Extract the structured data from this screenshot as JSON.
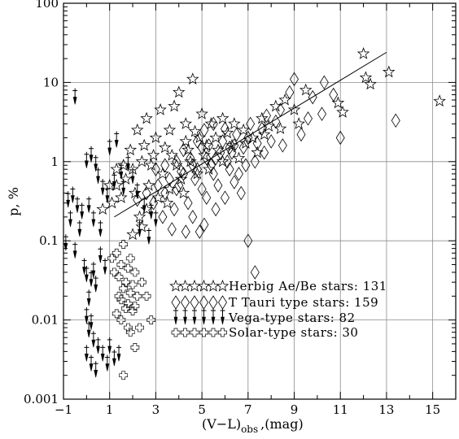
{
  "chart_data": {
    "type": "scatter",
    "title": "",
    "xlabel_main": "(V−L)",
    "xlabel_sub": "obs",
    "xlabel_unit": ",(mag)",
    "ylabel": "p, %",
    "xlim": [
      -1,
      16
    ],
    "ylim": [
      0.001,
      100
    ],
    "y_scale": "log",
    "grid": true,
    "legend_position": "lower-right",
    "x_ticks": [
      {
        "value": -1,
        "label": "−1"
      },
      {
        "value": 1,
        "label": "1"
      },
      {
        "value": 3,
        "label": "3"
      },
      {
        "value": 5,
        "label": "5"
      },
      {
        "value": 7,
        "label": "7"
      },
      {
        "value": 9,
        "label": "9"
      },
      {
        "value": 11,
        "label": "11"
      },
      {
        "value": 13,
        "label": "13"
      },
      {
        "value": 15,
        "label": "15"
      }
    ],
    "y_ticks": [
      {
        "value": 0.001,
        "label": "0.001"
      },
      {
        "value": 0.01,
        "label": "0.01"
      },
      {
        "value": 0.1,
        "label": "0.1"
      },
      {
        "value": 1,
        "label": "1"
      },
      {
        "value": 10,
        "label": "10"
      },
      {
        "value": 100,
        "label": "100"
      }
    ],
    "legend": [
      {
        "marker": "star",
        "label": "Herbig Ae/Be stars: 131"
      },
      {
        "marker": "diamond",
        "label": "T Tauri type stars: 159"
      },
      {
        "marker": "upperlimit",
        "label": "Vega-type stars: 82"
      },
      {
        "marker": "cross",
        "label": "Solar-type stars: 30"
      }
    ],
    "fit_line": {
      "x": [
        1.2,
        13.0
      ],
      "y": [
        0.2,
        24.0
      ]
    },
    "series": [
      {
        "marker": "star",
        "points": [
          [
            12.0,
            23.0
          ],
          [
            13.1,
            13.5
          ],
          [
            15.3,
            5.8
          ],
          [
            12.1,
            11.5
          ],
          [
            12.3,
            9.5
          ],
          [
            10.9,
            5.5
          ],
          [
            11.1,
            4.2
          ],
          [
            9.5,
            8.0
          ],
          [
            8.6,
            6.0
          ],
          [
            8.2,
            5.0
          ],
          [
            7.6,
            3.5
          ],
          [
            7.9,
            2.8
          ],
          [
            9.0,
            4.5
          ],
          [
            4.0,
            7.5
          ],
          [
            4.6,
            11.0
          ],
          [
            3.8,
            5.0
          ],
          [
            3.2,
            4.5
          ],
          [
            2.6,
            3.5
          ],
          [
            2.2,
            2.5
          ],
          [
            3.0,
            2.0
          ],
          [
            3.6,
            2.5
          ],
          [
            4.3,
            3.0
          ],
          [
            5.0,
            4.0
          ],
          [
            5.4,
            3.0
          ],
          [
            5.9,
            3.5
          ],
          [
            6.4,
            3.0
          ],
          [
            4.9,
            2.0
          ],
          [
            5.6,
            2.0
          ],
          [
            6.1,
            2.3
          ],
          [
            6.8,
            2.5
          ],
          [
            7.2,
            2.0
          ],
          [
            3.4,
            1.5
          ],
          [
            2.9,
            1.2
          ],
          [
            2.4,
            1.0
          ],
          [
            2.0,
            0.8
          ],
          [
            1.7,
            0.6
          ],
          [
            1.5,
            0.35
          ],
          [
            2.1,
            0.4
          ],
          [
            2.7,
            0.5
          ],
          [
            3.3,
            0.7
          ],
          [
            3.9,
            0.9
          ],
          [
            4.5,
            1.0
          ],
          [
            5.1,
            1.2
          ],
          [
            5.7,
            1.4
          ],
          [
            6.3,
            1.6
          ],
          [
            4.1,
            0.6
          ],
          [
            3.6,
            0.45
          ],
          [
            3.1,
            0.35
          ],
          [
            2.6,
            0.25
          ],
          [
            2.3,
            0.2
          ],
          [
            3.5,
            0.3
          ],
          [
            4.2,
            0.4
          ],
          [
            4.8,
            0.7
          ],
          [
            5.3,
            0.8
          ],
          [
            5.9,
            1.0
          ],
          [
            6.6,
            1.1
          ],
          [
            7.4,
            1.3
          ],
          [
            4.3,
            1.8
          ],
          [
            4.7,
            2.4
          ],
          [
            5.2,
            1.6
          ],
          [
            2.5,
            1.6
          ],
          [
            1.9,
            1.4
          ],
          [
            1.6,
            0.9
          ],
          [
            1.3,
            0.5
          ],
          [
            1.1,
            0.3
          ],
          [
            0.7,
            0.25
          ],
          [
            2.8,
            0.9
          ],
          [
            3.7,
            1.2
          ],
          [
            4.4,
            1.4
          ],
          [
            6.9,
            1.7
          ],
          [
            7.7,
            2.2
          ],
          [
            8.4,
            2.6
          ],
          [
            9.2,
            3.0
          ],
          [
            2.0,
            0.12
          ],
          [
            2.4,
            0.15
          ],
          [
            1.3,
            0.8
          ],
          [
            1.0,
            0.5
          ]
        ]
      },
      {
        "marker": "diamond",
        "points": [
          [
            9.0,
            11.0
          ],
          [
            10.3,
            10.0
          ],
          [
            8.8,
            7.5
          ],
          [
            9.8,
            6.5
          ],
          [
            10.7,
            7.0
          ],
          [
            11.0,
            2.0
          ],
          [
            13.4,
            3.3
          ],
          [
            8.2,
            3.2
          ],
          [
            7.6,
            2.6
          ],
          [
            7.0,
            2.0
          ],
          [
            6.4,
            1.6
          ],
          [
            5.8,
            1.3
          ],
          [
            5.2,
            1.1
          ],
          [
            4.6,
            0.9
          ],
          [
            4.1,
            0.75
          ],
          [
            3.6,
            0.6
          ],
          [
            3.1,
            0.5
          ],
          [
            2.6,
            0.4
          ],
          [
            2.2,
            0.33
          ],
          [
            5.1,
            2.5
          ],
          [
            5.5,
            3.0
          ],
          [
            6.0,
            2.6
          ],
          [
            6.5,
            2.2
          ],
          [
            7.1,
            3.0
          ],
          [
            7.8,
            3.8
          ],
          [
            8.4,
            4.5
          ],
          [
            4.8,
            1.8
          ],
          [
            5.3,
            1.6
          ],
          [
            5.9,
            1.8
          ],
          [
            6.3,
            1.3
          ],
          [
            6.8,
            1.5
          ],
          [
            7.4,
            1.7
          ],
          [
            4.2,
            1.4
          ],
          [
            4.5,
            1.1
          ],
          [
            3.9,
            1.0
          ],
          [
            3.4,
            0.9
          ],
          [
            3.0,
            0.8
          ],
          [
            4.0,
            0.5
          ],
          [
            4.7,
            0.6
          ],
          [
            5.5,
            0.7
          ],
          [
            6.2,
            0.8
          ],
          [
            6.9,
            0.9
          ],
          [
            7.3,
            1.0
          ],
          [
            5.0,
            0.45
          ],
          [
            5.7,
            0.5
          ],
          [
            6.4,
            0.55
          ],
          [
            5.2,
            0.35
          ],
          [
            4.4,
            0.3
          ],
          [
            3.8,
            0.25
          ],
          [
            3.3,
            0.2
          ],
          [
            4.6,
            0.2
          ],
          [
            5.6,
            0.25
          ],
          [
            6.0,
            0.35
          ],
          [
            6.7,
            0.4
          ],
          [
            5.1,
            0.16
          ],
          [
            4.3,
            0.13
          ],
          [
            4.9,
            0.13
          ],
          [
            3.7,
            0.14
          ],
          [
            7.0,
            0.1
          ],
          [
            7.3,
            0.04
          ],
          [
            9.3,
            2.2
          ],
          [
            9.6,
            3.5
          ],
          [
            10.2,
            4.0
          ],
          [
            8.0,
            1.8
          ],
          [
            7.7,
            1.3
          ],
          [
            8.5,
            1.6
          ],
          [
            6.6,
            0.7
          ],
          [
            6.1,
            1.0
          ],
          [
            5.4,
            0.9
          ],
          [
            4.8,
            0.8
          ],
          [
            4.2,
            0.7
          ],
          [
            3.9,
            0.45
          ],
          [
            2.9,
            0.3
          ],
          [
            3.4,
            0.4
          ],
          [
            5.0,
            1.5
          ],
          [
            5.6,
            1.1
          ],
          [
            6.2,
            1.5
          ]
        ]
      },
      {
        "marker": "upperlimit",
        "points": [
          [
            -0.5,
            7.0
          ],
          [
            -0.6,
            0.4
          ],
          [
            -0.8,
            0.35
          ],
          [
            -0.4,
            0.3
          ],
          [
            -0.2,
            0.25
          ],
          [
            -0.7,
            0.2
          ],
          [
            -0.3,
            0.15
          ],
          [
            -0.9,
            0.1
          ],
          [
            -0.5,
            0.08
          ],
          [
            0.0,
            1.1
          ],
          [
            0.2,
            1.3
          ],
          [
            0.4,
            1.0
          ],
          [
            0.5,
            0.7
          ],
          [
            0.7,
            0.5
          ],
          [
            0.9,
            0.4
          ],
          [
            1.2,
            0.6
          ],
          [
            1.5,
            0.8
          ],
          [
            1.8,
            1.0
          ],
          [
            0.1,
            0.3
          ],
          [
            0.3,
            0.2
          ],
          [
            0.6,
            0.15
          ],
          [
            -0.1,
            0.05
          ],
          [
            0.0,
            0.04
          ],
          [
            0.2,
            0.035
          ],
          [
            0.4,
            0.03
          ],
          [
            0.1,
            0.02
          ],
          [
            0.0,
            0.012
          ],
          [
            0.2,
            0.01
          ],
          [
            0.1,
            0.008
          ],
          [
            0.3,
            0.006
          ],
          [
            0.5,
            0.005
          ],
          [
            0.0,
            0.004
          ],
          [
            0.2,
            0.003
          ],
          [
            0.4,
            0.0025
          ],
          [
            0.7,
            0.004
          ],
          [
            0.9,
            0.003
          ],
          [
            1.0,
            0.005
          ],
          [
            1.2,
            0.0035
          ],
          [
            1.4,
            0.004
          ],
          [
            1.0,
            1.6
          ],
          [
            1.3,
            2.0
          ],
          [
            1.6,
            0.5
          ],
          [
            2.0,
            0.7
          ],
          [
            2.2,
            0.45
          ],
          [
            2.5,
            0.3
          ],
          [
            2.8,
            0.25
          ],
          [
            3.0,
            0.2
          ],
          [
            2.3,
            0.15
          ],
          [
            2.7,
            0.12
          ],
          [
            0.6,
            0.07
          ],
          [
            0.8,
            0.05
          ],
          [
            0.3,
            0.045
          ]
        ]
      },
      {
        "marker": "cross",
        "points": [
          [
            1.6,
            0.09
          ],
          [
            1.3,
            0.07
          ],
          [
            1.9,
            0.06
          ],
          [
            1.5,
            0.05
          ],
          [
            1.8,
            0.045
          ],
          [
            2.1,
            0.04
          ],
          [
            1.4,
            0.035
          ],
          [
            1.7,
            0.03
          ],
          [
            2.0,
            0.028
          ],
          [
            1.6,
            0.025
          ],
          [
            1.9,
            0.022
          ],
          [
            2.2,
            0.02
          ],
          [
            1.5,
            0.018
          ],
          [
            1.8,
            0.016
          ],
          [
            2.1,
            0.015
          ],
          [
            1.7,
            0.014
          ],
          [
            2.0,
            0.013
          ],
          [
            2.8,
            0.01
          ],
          [
            2.3,
            0.008
          ],
          [
            1.9,
            0.007
          ],
          [
            2.1,
            0.0045
          ],
          [
            1.6,
            0.002
          ],
          [
            1.2,
            0.04
          ],
          [
            1.4,
            0.02
          ],
          [
            1.3,
            0.012
          ],
          [
            2.4,
            0.03
          ],
          [
            1.1,
            0.06
          ],
          [
            2.6,
            0.02
          ],
          [
            1.8,
            0.008
          ],
          [
            1.5,
            0.01
          ]
        ]
      }
    ]
  }
}
